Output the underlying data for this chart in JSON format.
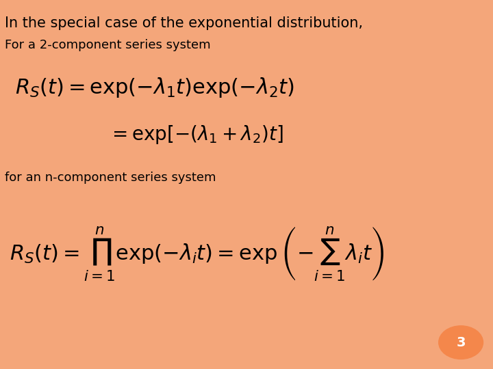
{
  "title_text": "In the special case of the exponential distribution,",
  "subtitle_text": "For a 2-component series system",
  "eq1": "$R_S(t) = \\exp(-\\lambda_1 t)\\exp(-\\lambda_2 t)$",
  "eq2": "$= \\exp[-(\\lambda_1 + \\lambda_2)t]$",
  "label2": "for an n-component series system",
  "eq3": "$R_S(t)= \\prod_{i=1}^{n} \\exp(-\\lambda_i t)= \\exp\\left(-\\sum_{i=1}^{n} \\lambda_i t\\right)$",
  "bg_color": "#ffffff",
  "border_color": "#f4a67a",
  "text_color": "#000000",
  "badge_color": "#f4874b",
  "badge_text": "3",
  "title_fontsize": 15,
  "subtitle_fontsize": 13,
  "eq_fontsize": 22,
  "eq2_fontsize": 20,
  "label2_fontsize": 13,
  "eq3_fontsize": 22
}
